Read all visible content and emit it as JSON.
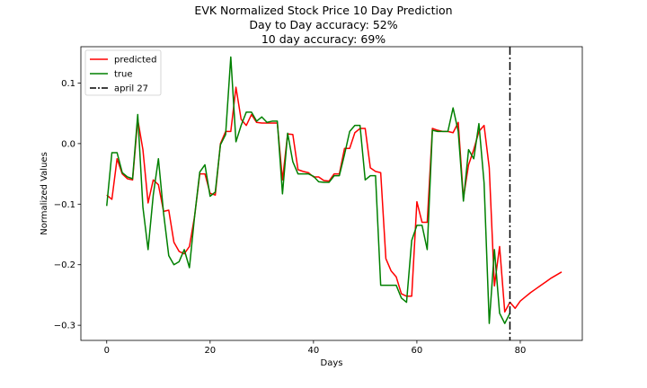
{
  "chart_data": {
    "type": "line",
    "title": "EVK Normalized Stock Price 10 Day Prediction",
    "subtitle_lines": [
      "Day to Day accuracy: 52%",
      "10 day accuracy: 69%"
    ],
    "xlabel": "Days",
    "ylabel": "Normalized Values",
    "xlim": [
      -5,
      92
    ],
    "ylim": [
      -0.325,
      0.16
    ],
    "x_ticks": [
      0,
      20,
      40,
      60,
      80
    ],
    "x_tick_labels": [
      "0",
      "20",
      "40",
      "60",
      "80"
    ],
    "y_ticks": [
      -0.3,
      -0.2,
      -0.1,
      0.0,
      0.1
    ],
    "y_tick_labels": [
      "−0.3",
      "−0.2",
      "−0.1",
      "0.0",
      "0.1"
    ],
    "grid": false,
    "legend_position": "top-left",
    "series": [
      {
        "name": "predicted",
        "color": "#ff0000",
        "x": [
          0,
          1,
          2,
          3,
          4,
          5,
          6,
          7,
          8,
          9,
          10,
          11,
          12,
          13,
          14,
          15,
          16,
          17,
          18,
          19,
          20,
          21,
          22,
          23,
          24,
          25,
          26,
          27,
          28,
          29,
          30,
          31,
          32,
          33,
          34,
          35,
          36,
          37,
          38,
          39,
          40,
          41,
          42,
          43,
          44,
          45,
          46,
          47,
          48,
          49,
          50,
          51,
          52,
          53,
          54,
          55,
          56,
          57,
          58,
          59,
          60,
          61,
          62,
          63,
          64,
          65,
          66,
          67,
          68,
          69,
          70,
          71,
          72,
          73,
          74,
          75,
          76,
          77,
          78,
          79,
          80,
          81,
          82,
          83,
          84,
          85,
          86,
          87,
          88
        ],
        "y": [
          -0.085,
          -0.092,
          -0.025,
          -0.05,
          -0.058,
          -0.06,
          0.04,
          -0.01,
          -0.098,
          -0.06,
          -0.068,
          -0.112,
          -0.11,
          -0.163,
          -0.178,
          -0.182,
          -0.17,
          -0.12,
          -0.05,
          -0.05,
          -0.082,
          -0.085,
          0.0,
          0.02,
          0.02,
          0.093,
          0.04,
          0.03,
          0.048,
          0.035,
          0.034,
          0.034,
          0.034,
          0.034,
          -0.06,
          0.016,
          0.015,
          -0.043,
          -0.046,
          -0.048,
          -0.055,
          -0.055,
          -0.061,
          -0.062,
          -0.05,
          -0.05,
          -0.008,
          -0.008,
          0.018,
          0.025,
          0.025,
          -0.04,
          -0.046,
          -0.048,
          -0.19,
          -0.21,
          -0.22,
          -0.248,
          -0.252,
          -0.252,
          -0.096,
          -0.13,
          -0.13,
          0.025,
          0.022,
          0.02,
          0.02,
          0.018,
          0.035,
          -0.09,
          -0.035,
          -0.01,
          0.02,
          0.03,
          -0.04,
          -0.235,
          -0.17,
          -0.278,
          -0.262,
          -0.272,
          -0.26,
          -0.253,
          -0.246,
          -0.24,
          -0.234,
          -0.228,
          -0.222,
          -0.217,
          -0.212
        ]
      },
      {
        "name": "true",
        "color": "#008000",
        "x": [
          0,
          1,
          2,
          3,
          4,
          5,
          6,
          7,
          8,
          9,
          10,
          11,
          12,
          13,
          14,
          15,
          16,
          17,
          18,
          19,
          20,
          21,
          22,
          23,
          24,
          25,
          26,
          27,
          28,
          29,
          30,
          31,
          32,
          33,
          34,
          35,
          36,
          37,
          38,
          39,
          40,
          41,
          42,
          43,
          44,
          45,
          46,
          47,
          48,
          49,
          50,
          51,
          52,
          53,
          54,
          55,
          56,
          57,
          58,
          59,
          60,
          61,
          62,
          63,
          64,
          65,
          66,
          67,
          68,
          69,
          70,
          71,
          72,
          73,
          74,
          75,
          76,
          77,
          78
        ],
        "y": [
          -0.103,
          -0.015,
          -0.015,
          -0.048,
          -0.055,
          -0.058,
          0.048,
          -0.105,
          -0.175,
          -0.085,
          -0.025,
          -0.115,
          -0.185,
          -0.2,
          -0.195,
          -0.175,
          -0.205,
          -0.12,
          -0.047,
          -0.035,
          -0.087,
          -0.08,
          -0.002,
          0.015,
          0.143,
          0.003,
          0.03,
          0.052,
          0.052,
          0.037,
          0.044,
          0.035,
          0.037,
          0.037,
          -0.083,
          0.017,
          -0.03,
          -0.05,
          -0.05,
          -0.05,
          -0.054,
          -0.063,
          -0.064,
          -0.064,
          -0.053,
          -0.053,
          -0.018,
          0.02,
          0.03,
          0.03,
          -0.06,
          -0.053,
          -0.053,
          -0.234,
          -0.234,
          -0.234,
          -0.234,
          -0.255,
          -0.262,
          -0.16,
          -0.135,
          -0.135,
          -0.175,
          0.022,
          0.02,
          0.02,
          0.02,
          0.059,
          0.02,
          -0.095,
          -0.01,
          -0.025,
          0.033,
          -0.065,
          -0.297,
          -0.175,
          -0.28,
          -0.297,
          -0.28
        ]
      },
      {
        "name": "april 27",
        "color": "#000000",
        "style": "dash-dot",
        "vertical_x": 78
      }
    ]
  }
}
